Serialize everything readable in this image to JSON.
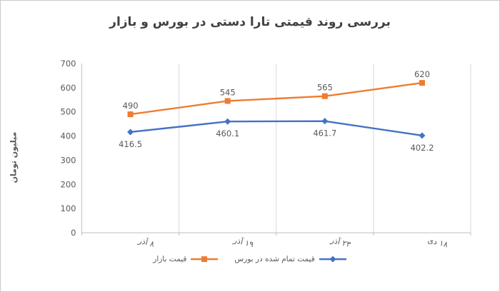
{
  "chart_data": {
    "type": "line",
    "title": "بررسی روند قیمتی تارا دستی در بورس و بازار",
    "ylabel": "میلیون تومان",
    "xlabel": "",
    "ylim": [
      0,
      700
    ],
    "ytick_step": 100,
    "ytick_labels": [
      "0",
      "100",
      "200",
      "300",
      "400",
      "500",
      "600",
      "700"
    ],
    "grid": "vertical-only",
    "legend_position": "bottom",
    "categories": [
      "۸ آذر",
      "۱۹ آذر",
      "۲۳ آذر",
      "۱۸ دی"
    ],
    "series": [
      {
        "name": "قیمت تمام شده در بورس",
        "color": "#4472C4",
        "marker": "diamond",
        "label_position": "below",
        "values": [
          416.5,
          460.1,
          461.7,
          402.2
        ],
        "labels": [
          "416.5",
          "460.1",
          "461.7",
          "402.2"
        ]
      },
      {
        "name": "قیمت بازار",
        "color": "#ED7D31",
        "marker": "square",
        "label_position": "above",
        "values": [
          490,
          545,
          565,
          620
        ],
        "labels": [
          "490",
          "545",
          "565",
          "620"
        ]
      }
    ],
    "colors": {
      "axis_line": "#BFBFBF",
      "gridline": "#D9D9D9",
      "tick_text": "#595959",
      "data_label_text": "#595959",
      "title_text": "#404040"
    }
  }
}
